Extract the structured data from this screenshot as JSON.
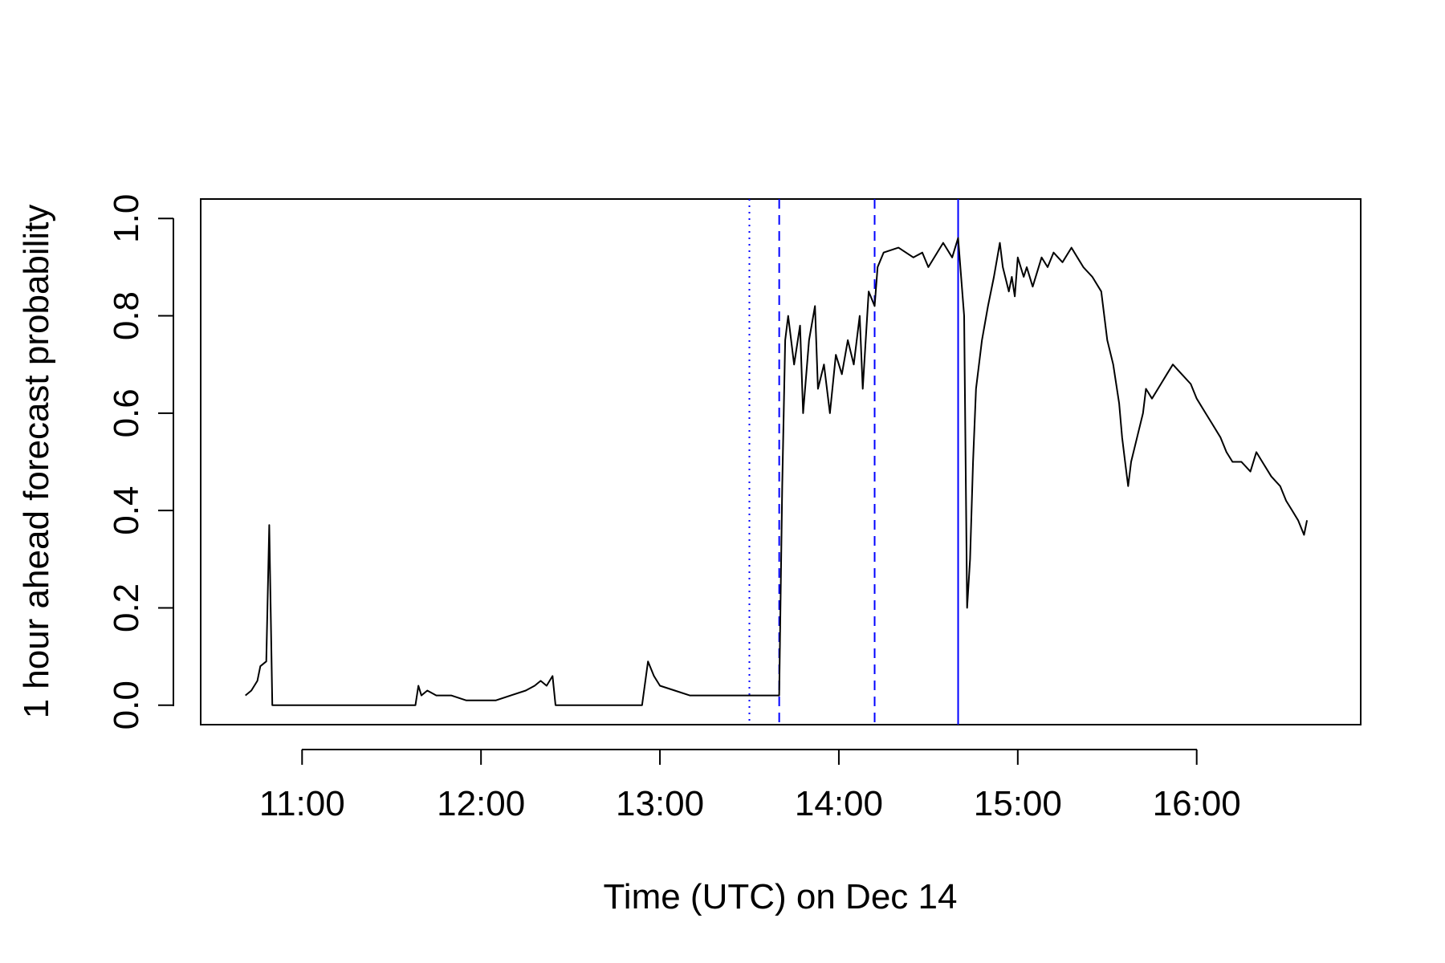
{
  "chart_data": {
    "type": "line",
    "title": "",
    "xlabel": "Time (UTC) on Dec 14",
    "ylabel": "1 hour ahead forecast probability",
    "xlim": [
      "10:26",
      "16:55"
    ],
    "ylim": [
      -0.04,
      1.04
    ],
    "x_tick_labels": [
      "11:00",
      "12:00",
      "13:00",
      "14:00",
      "15:00",
      "16:00"
    ],
    "y_tick_labels": [
      "0.0",
      "0.2",
      "0.4",
      "0.6",
      "0.8",
      "1.0"
    ],
    "grid": false,
    "series": [
      {
        "color": "#000000",
        "x": [
          "10:41",
          "10:43",
          "10:45",
          "10:46",
          "10:48",
          "10:49",
          "10:50",
          "10:51",
          "10:52",
          "10:52",
          "10:53",
          "10:53",
          "10:54",
          "11:00",
          "11:10",
          "11:20",
          "11:30",
          "11:38",
          "11:39",
          "11:40",
          "11:42",
          "11:45",
          "11:50",
          "11:55",
          "12:00",
          "12:05",
          "12:10",
          "12:15",
          "12:18",
          "12:20",
          "12:22",
          "12:24",
          "12:25",
          "12:26",
          "12:30",
          "12:40",
          "12:50",
          "12:54",
          "12:56",
          "12:58",
          "13:00",
          "13:05",
          "13:10",
          "13:15",
          "13:20",
          "13:25",
          "13:30",
          "13:35",
          "13:40",
          "13:41",
          "13:42",
          "13:43",
          "13:45",
          "13:47",
          "13:48",
          "13:50",
          "13:52",
          "13:53",
          "13:55",
          "13:57",
          "13:59",
          "14:01",
          "14:03",
          "14:05",
          "14:07",
          "14:08",
          "14:10",
          "14:12",
          "14:13",
          "14:15",
          "14:20",
          "14:25",
          "14:28",
          "14:30",
          "14:35",
          "14:38",
          "14:40",
          "14:42",
          "14:43",
          "14:44",
          "14:45",
          "14:46",
          "14:48",
          "14:50",
          "14:52",
          "14:54",
          "14:55",
          "14:57",
          "14:58",
          "14:59",
          "15:00",
          "15:02",
          "15:03",
          "15:05",
          "15:08",
          "15:10",
          "15:12",
          "15:15",
          "15:18",
          "15:20",
          "15:22",
          "15:25",
          "15:28",
          "15:30",
          "15:32",
          "15:34",
          "15:35",
          "15:36",
          "15:37",
          "15:38",
          "15:40",
          "15:42",
          "15:43",
          "15:45",
          "15:48",
          "15:50",
          "15:52",
          "15:55",
          "15:58",
          "16:00",
          "16:03",
          "16:05",
          "16:08",
          "16:10",
          "16:12",
          "16:15",
          "16:18",
          "16:20",
          "16:22",
          "16:25",
          "16:28",
          "16:30",
          "16:32",
          "16:34",
          "16:36",
          "16:37"
        ],
        "y": [
          0.02,
          0.03,
          0.05,
          0.08,
          0.09,
          0.37,
          0.0,
          0.0,
          0.0,
          0.0,
          0.0,
          0.0,
          0.0,
          0.0,
          0.0,
          0.0,
          0.0,
          0.0,
          0.04,
          0.02,
          0.03,
          0.02,
          0.02,
          0.01,
          0.01,
          0.01,
          0.02,
          0.03,
          0.04,
          0.05,
          0.04,
          0.06,
          0.0,
          0.0,
          0.0,
          0.0,
          0.0,
          0.0,
          0.09,
          0.06,
          0.04,
          0.03,
          0.02,
          0.02,
          0.02,
          0.02,
          0.02,
          0.02,
          0.02,
          0.45,
          0.75,
          0.8,
          0.7,
          0.78,
          0.6,
          0.75,
          0.82,
          0.65,
          0.7,
          0.6,
          0.72,
          0.68,
          0.75,
          0.7,
          0.8,
          0.65,
          0.85,
          0.82,
          0.9,
          0.93,
          0.94,
          0.92,
          0.93,
          0.9,
          0.95,
          0.92,
          0.96,
          0.8,
          0.2,
          0.3,
          0.5,
          0.65,
          0.75,
          0.82,
          0.88,
          0.95,
          0.9,
          0.85,
          0.88,
          0.84,
          0.92,
          0.88,
          0.9,
          0.86,
          0.92,
          0.9,
          0.93,
          0.91,
          0.94,
          0.92,
          0.9,
          0.88,
          0.85,
          0.75,
          0.7,
          0.62,
          0.55,
          0.5,
          0.45,
          0.5,
          0.55,
          0.6,
          0.65,
          0.63,
          0.66,
          0.68,
          0.7,
          0.68,
          0.66,
          0.63,
          0.6,
          0.58,
          0.55,
          0.52,
          0.5,
          0.5,
          0.48,
          0.52,
          0.5,
          0.47,
          0.45,
          0.42,
          0.4,
          0.38,
          0.35,
          0.38
        ]
      }
    ],
    "vlines": [
      {
        "x": "13:30",
        "style": "dotted",
        "color": "#0000ff"
      },
      {
        "x": "13:40",
        "style": "dashed",
        "color": "#0000ff"
      },
      {
        "x": "14:12",
        "style": "dashed",
        "color": "#0000ff"
      },
      {
        "x": "14:40",
        "style": "solid",
        "color": "#0000ff"
      }
    ]
  }
}
